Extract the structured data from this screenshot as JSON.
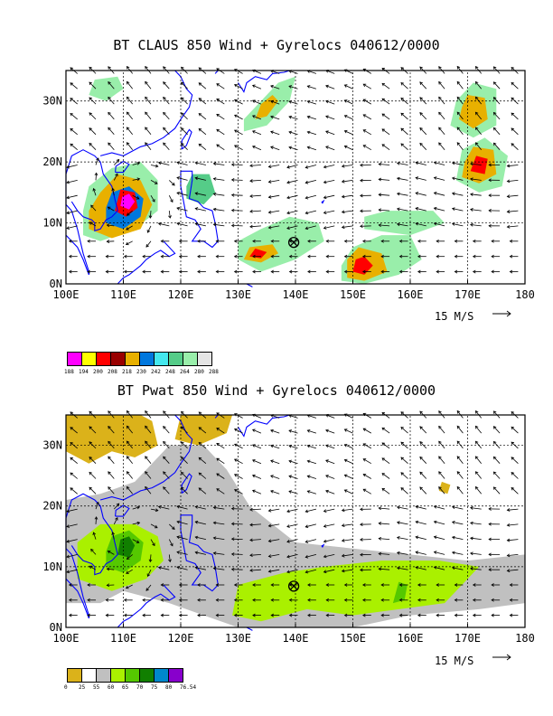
{
  "top": {
    "title": "BT CLAUS 850 Wind + Gyrelocs 040612/0000",
    "scale_label": "15 M/S",
    "colorbar": {
      "colors": [
        "#ff00ff",
        "#ffff00",
        "#ff0000",
        "#990000",
        "#e8b000",
        "#0077dd",
        "#44e8ee",
        "#55cc88",
        "#99eeaa",
        "#e4e4e4"
      ],
      "ticks": [
        "188",
        "194",
        "200",
        "208",
        "218",
        "230",
        "242",
        "248",
        "264",
        "280",
        "288"
      ]
    }
  },
  "bottom": {
    "title": "BT Pwat 850 Wind + Gyrelocs 040612/0000",
    "scale_label": "15 M/S",
    "colorbar": {
      "colors": [
        "#dbb21a",
        "#ffffff",
        "#c0c0c0",
        "#aaf000",
        "#55c800",
        "#117f00",
        "#0088cc",
        "#8800cc"
      ],
      "ticks": [
        "0",
        "25",
        "55",
        "60",
        "65",
        "70",
        "75",
        "80",
        "76.54"
      ]
    }
  },
  "axes": {
    "x_ticks": [
      "100E",
      "110E",
      "120E",
      "130E",
      "140E",
      "150E",
      "160E",
      "170E",
      "180"
    ],
    "y_ticks": [
      "0N",
      "10N",
      "20N",
      "30N"
    ]
  },
  "colors": {
    "coast": "#0000ff",
    "grid": "#000000"
  }
}
